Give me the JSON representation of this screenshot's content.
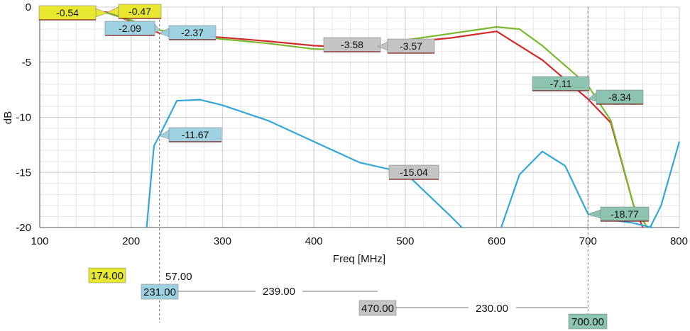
{
  "chart_data": {
    "type": "line",
    "xlabel": "Freq [MHz]",
    "ylabel": "dB",
    "xlim": [
      100,
      800
    ],
    "ylim": [
      -20,
      0
    ],
    "x_ticks": [
      100,
      200,
      300,
      400,
      500,
      600,
      700,
      800
    ],
    "y_ticks": [
      0,
      -5,
      -10,
      -15,
      -20
    ],
    "grid": true,
    "colors": {
      "red": "#d42a2a",
      "green": "#7ab82e",
      "blue": "#33a7d6"
    },
    "series": [
      {
        "color": "red",
        "x": [
          100,
          130,
          150,
          174,
          200,
          231,
          260,
          300,
          350,
          400,
          450,
          470,
          500,
          550,
          600,
          650,
          700,
          725,
          750,
          760
        ],
        "y": [
          -0.05,
          -0.2,
          -0.35,
          -0.47,
          -1.3,
          -2.37,
          -2.6,
          -2.75,
          -3.1,
          -3.5,
          -3.7,
          -3.57,
          -3.2,
          -2.8,
          -2.2,
          -4.8,
          -8.34,
          -10.5,
          -18.0,
          -20
        ]
      },
      {
        "color": "green",
        "x": [
          100,
          130,
          150,
          174,
          200,
          231,
          260,
          300,
          350,
          400,
          450,
          470,
          500,
          550,
          600,
          625,
          650,
          700,
          725,
          750,
          765
        ],
        "y": [
          -0.05,
          -0.3,
          -0.4,
          -0.54,
          -1.2,
          -2.09,
          -2.5,
          -2.9,
          -3.3,
          -3.8,
          -3.9,
          -3.58,
          -3.0,
          -2.4,
          -1.8,
          -2.0,
          -3.5,
          -7.11,
          -10.3,
          -18.0,
          -20
        ]
      },
      {
        "color": "blue",
        "x": [
          217,
          225,
          231,
          250,
          275,
          300,
          350,
          400,
          450,
          500,
          550,
          562
        ],
        "y": [
          -20,
          -12.6,
          -11.67,
          -8.5,
          -8.4,
          -8.9,
          -10.3,
          -12.2,
          -14.1,
          -15.04,
          -19.0,
          -20
        ]
      },
      {
        "color": "blue",
        "x": [
          605,
          625,
          650,
          675,
          700,
          725,
          750,
          760,
          770
        ],
        "y": [
          -20,
          -15.2,
          -13.1,
          -14.4,
          -18.77,
          -19.3,
          -19.6,
          -19.8,
          -20
        ]
      },
      {
        "color": "blue",
        "x": [
          768,
          780,
          800
        ],
        "y": [
          -20,
          -18,
          -12.2
        ]
      }
    ],
    "markers": [
      {
        "label": "-0.54",
        "fill": "#e8e830",
        "ax": 174,
        "ay": -0.54,
        "bx": 55,
        "by": 8,
        "bw": 80,
        "bh": 20
      },
      {
        "label": "-0.47",
        "fill": "#e8e830",
        "ax": 174,
        "ay": -0.47,
        "bx": 167,
        "by": 6,
        "bw": 60,
        "bh": 20
      },
      {
        "label": "-2.09",
        "fill": "#9fd2e0",
        "ax": 231,
        "ay": -2.09,
        "bx": 148,
        "by": 30,
        "bw": 70,
        "bh": 20
      },
      {
        "label": "-2.37",
        "fill": "#9fd2e0",
        "ax": 231,
        "ay": -2.37,
        "bx": 238,
        "by": 36,
        "bw": 66,
        "bh": 20
      },
      {
        "label": "-3.58",
        "fill": "#c4c4c4",
        "ax": 470,
        "ay": -3.58,
        "bx": 456,
        "by": 53,
        "bw": 80,
        "bh": 20
      },
      {
        "label": "-3.57",
        "fill": "#c4c4c4",
        "ax": 470,
        "ay": -3.57,
        "bx": 546,
        "by": 55,
        "bw": 66,
        "bh": 20
      },
      {
        "label": "-7.11",
        "fill": "#8cc4b0",
        "ax": 700,
        "ay": -7.11,
        "bx": 750,
        "by": 108,
        "bw": 80,
        "bh": 20
      },
      {
        "label": "-8.34",
        "fill": "#8cc4b0",
        "ax": 700,
        "ay": -8.34,
        "bx": 840,
        "by": 127,
        "bw": 66,
        "bh": 20
      },
      {
        "label": "-11.67",
        "fill": "#9fd2e0",
        "ax": 231,
        "ay": -11.67,
        "bx": 238,
        "by": 180,
        "bw": 74,
        "bh": 20
      },
      {
        "label": "-15.04",
        "fill": "#c4c4c4",
        "ax": 500,
        "ay": -15.04,
        "bx": 548,
        "by": 233,
        "bw": 70,
        "bh": 20
      },
      {
        "label": "-18.77",
        "fill": "#8cc4b0",
        "ax": 700,
        "ay": -18.77,
        "bx": 846,
        "by": 292,
        "bw": 68,
        "bh": 20
      }
    ],
    "vertical_markers": [
      231,
      700
    ],
    "freq_markers": [
      {
        "value": "174.00",
        "fill": "#e8e830"
      },
      {
        "value": "231.00",
        "fill": "#9fd2e0"
      },
      {
        "value": "470.00",
        "fill": "#c4c4c4"
      },
      {
        "value": "700.00",
        "fill": "#8cc4b0"
      }
    ],
    "distances": [
      "57.00",
      "239.00",
      "230.00"
    ]
  }
}
